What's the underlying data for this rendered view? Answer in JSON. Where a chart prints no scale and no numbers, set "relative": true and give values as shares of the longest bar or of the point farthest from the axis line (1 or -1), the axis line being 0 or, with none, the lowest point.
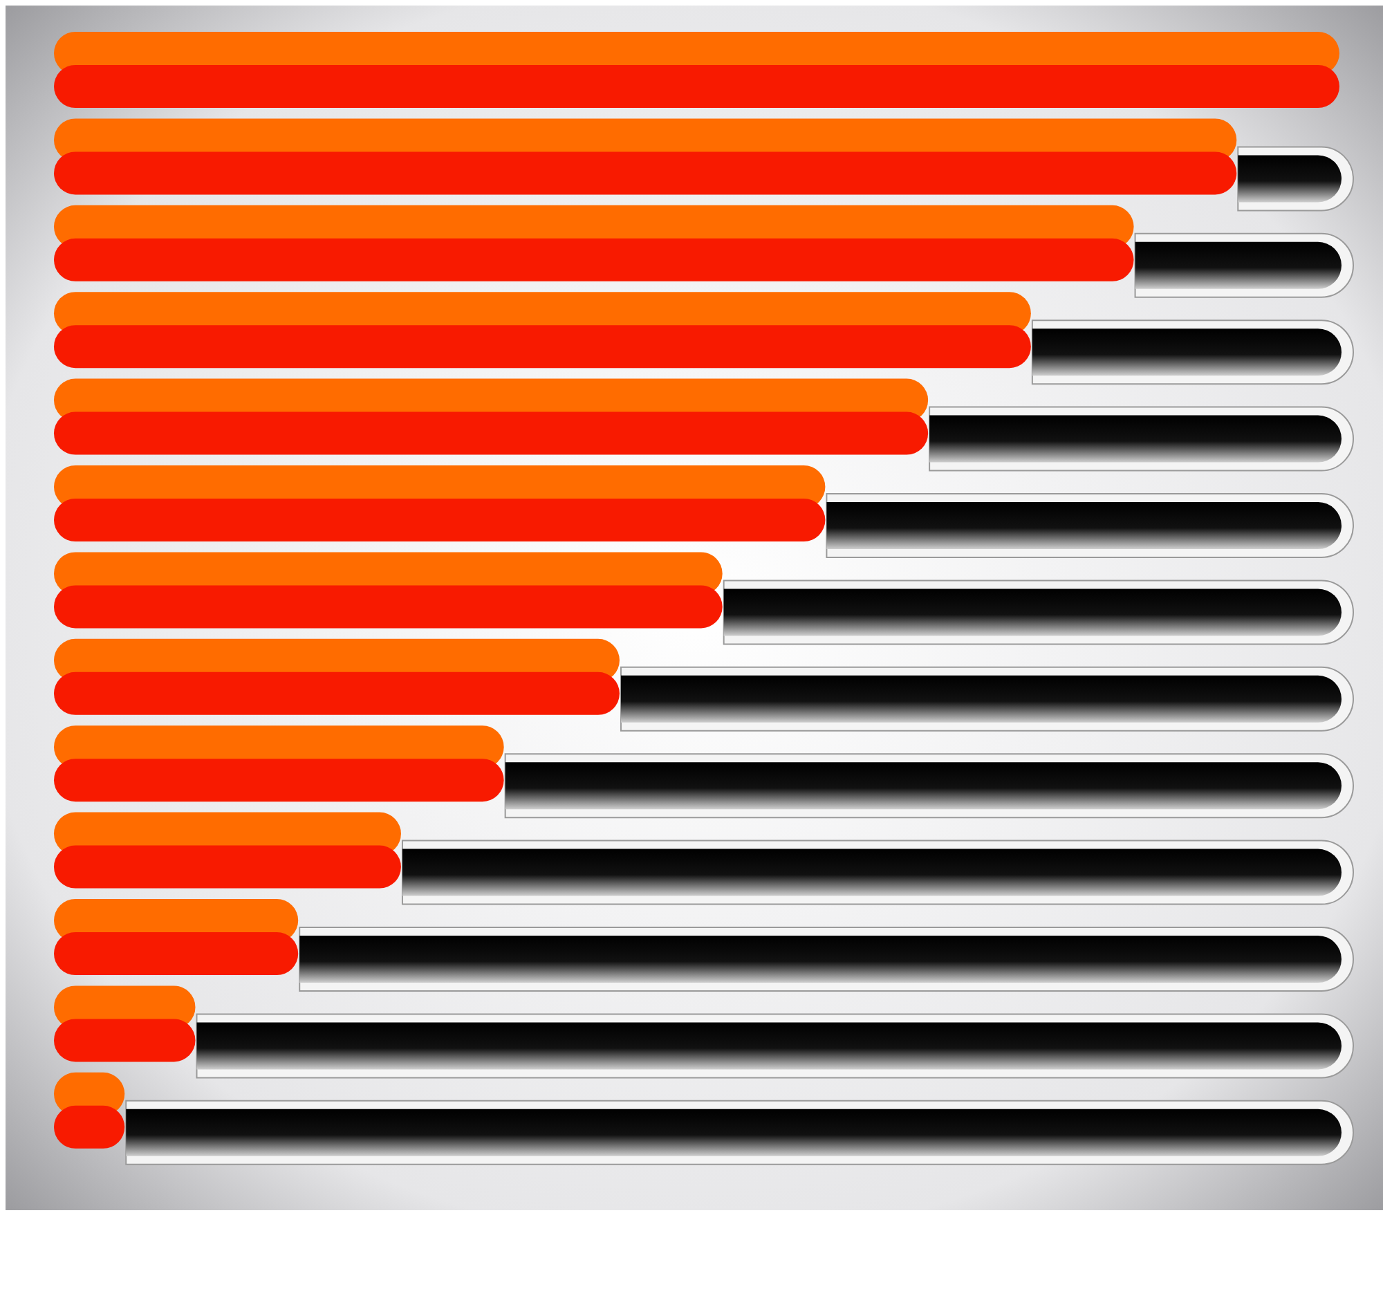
{
  "chart_data": {
    "type": "bar",
    "orientation": "horizontal",
    "relative": true,
    "categories": [
      null,
      null,
      null,
      null,
      null,
      null,
      null,
      null,
      null,
      null,
      null,
      null,
      null
    ],
    "series": [
      {
        "color": "#ff6c00",
        "values": [
          1,
          0.92,
          0.84,
          0.76,
          0.68,
          0.6,
          0.52,
          0.44,
          0.35,
          0.27,
          0.19,
          0.11,
          0.055
        ]
      },
      {
        "color": "#f81a00",
        "values": [
          1,
          0.92,
          0.84,
          0.76,
          0.68,
          0.6,
          0.52,
          0.44,
          0.35,
          0.27,
          0.19,
          0.11,
          0.055
        ]
      }
    ]
  }
}
